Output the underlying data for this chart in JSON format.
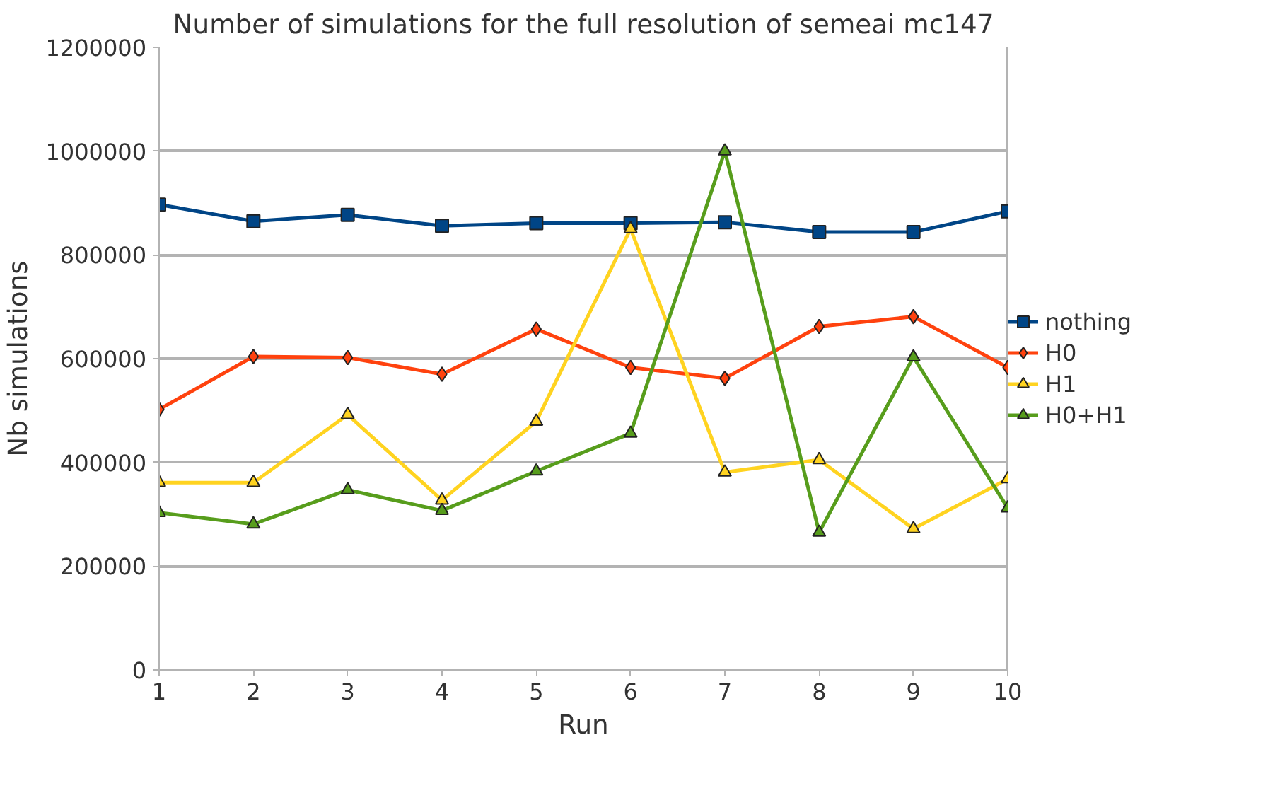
{
  "chart_data": {
    "type": "line",
    "title": "Number of simulations for the full resolution of semeai mc147",
    "xlabel": "Run",
    "ylabel": "Nb simulations",
    "x": [
      1,
      2,
      3,
      4,
      5,
      6,
      7,
      8,
      9,
      10
    ],
    "xlim": [
      1,
      10
    ],
    "xticks": [
      1,
      2,
      3,
      4,
      5,
      6,
      7,
      8,
      9,
      10
    ],
    "ylim": [
      0,
      1200000
    ],
    "yticks": [
      0,
      200000,
      400000,
      600000,
      800000,
      1000000,
      1200000
    ],
    "grid": "y",
    "legend": "right",
    "line_style": "solid",
    "series": [
      {
        "name": "nothing",
        "color": "#004586",
        "marker": "square",
        "values": [
          897000,
          865000,
          877000,
          856000,
          861000,
          861000,
          863000,
          844000,
          844000,
          884000
        ]
      },
      {
        "name": "H0",
        "color": "#ff420e",
        "marker": "diamond",
        "values": [
          502000,
          604000,
          602000,
          570000,
          657000,
          583000,
          562000,
          662000,
          681000,
          583000
        ]
      },
      {
        "name": "H1",
        "color": "#ffd320",
        "marker": "triangle",
        "values": [
          361000,
          361000,
          492000,
          327000,
          479000,
          850000,
          381000,
          405000,
          272000,
          368000
        ]
      },
      {
        "name": "H0+H1",
        "color": "#579d1c",
        "marker": "triangle",
        "values": [
          303000,
          281000,
          347000,
          307000,
          383000,
          456000,
          1000000,
          265000,
          603000,
          312000
        ]
      }
    ]
  }
}
